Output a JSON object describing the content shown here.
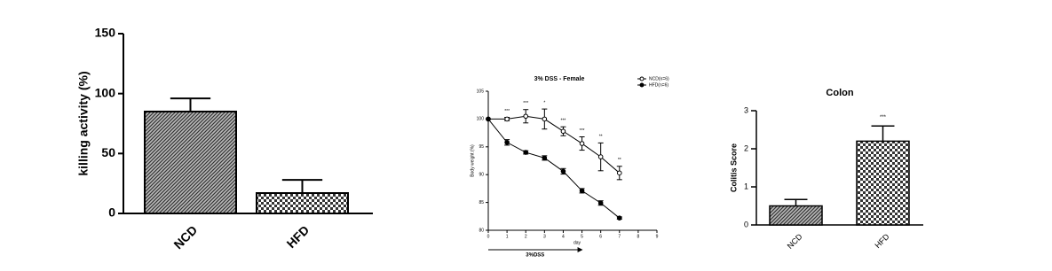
{
  "chart_data": [
    {
      "type": "bar",
      "ylabel": "killing activity (%)",
      "categories": [
        "NCD",
        "HFD"
      ],
      "values": [
        85,
        17
      ],
      "errors": [
        11,
        11
      ],
      "ylim": [
        0,
        150
      ],
      "yticks": [
        0,
        50,
        100,
        150
      ]
    },
    {
      "type": "line",
      "title": "3% DSS - Female",
      "xlabel": "day",
      "ylabel": "Body weight (%)",
      "treatment_label": "3%DSS",
      "x": [
        0,
        1,
        2,
        3,
        4,
        5,
        6,
        7
      ],
      "series": [
        {
          "name": "NCD(n=6)",
          "color": "#000000",
          "marker": "open",
          "values": [
            100,
            100,
            100.5,
            100,
            97.8,
            95.6,
            93.2,
            90.3
          ],
          "errors": [
            0,
            0.3,
            1.2,
            1.8,
            0.8,
            1.2,
            2.5,
            1.2
          ]
        },
        {
          "name": "HFD(n=6)",
          "color": "#000000",
          "marker": "filled",
          "values": [
            100,
            95.8,
            94,
            93,
            90.6,
            87.1,
            84.9,
            82.2
          ],
          "errors": [
            0,
            0.5,
            0.3,
            0.4,
            0.5,
            0.4,
            0.4,
            0.2
          ]
        }
      ],
      "annotations": [
        {
          "x": 1,
          "text": "***"
        },
        {
          "x": 2,
          "text": "***"
        },
        {
          "x": 3,
          "text": "*"
        },
        {
          "x": 4,
          "text": "***"
        },
        {
          "x": 5,
          "text": "***"
        },
        {
          "x": 6,
          "text": "**"
        },
        {
          "x": 7,
          "text": "**"
        }
      ],
      "xlim": [
        0,
        9
      ],
      "xticks": [
        0,
        1,
        2,
        3,
        4,
        5,
        6,
        7,
        8,
        9
      ],
      "ylim": [
        80,
        105
      ],
      "yticks": [
        80,
        85,
        90,
        95,
        100,
        105
      ]
    },
    {
      "type": "bar",
      "title": "Colon",
      "ylabel": "Colitis Score",
      "categories": [
        "NCD",
        "HFD"
      ],
      "values": [
        0.5,
        2.2
      ],
      "errors": [
        0.17,
        0.4
      ],
      "annotations": [
        {
          "x": "HFD",
          "text": "***"
        }
      ],
      "ylim": [
        0,
        3
      ],
      "yticks": [
        0,
        1,
        2,
        3
      ]
    }
  ]
}
